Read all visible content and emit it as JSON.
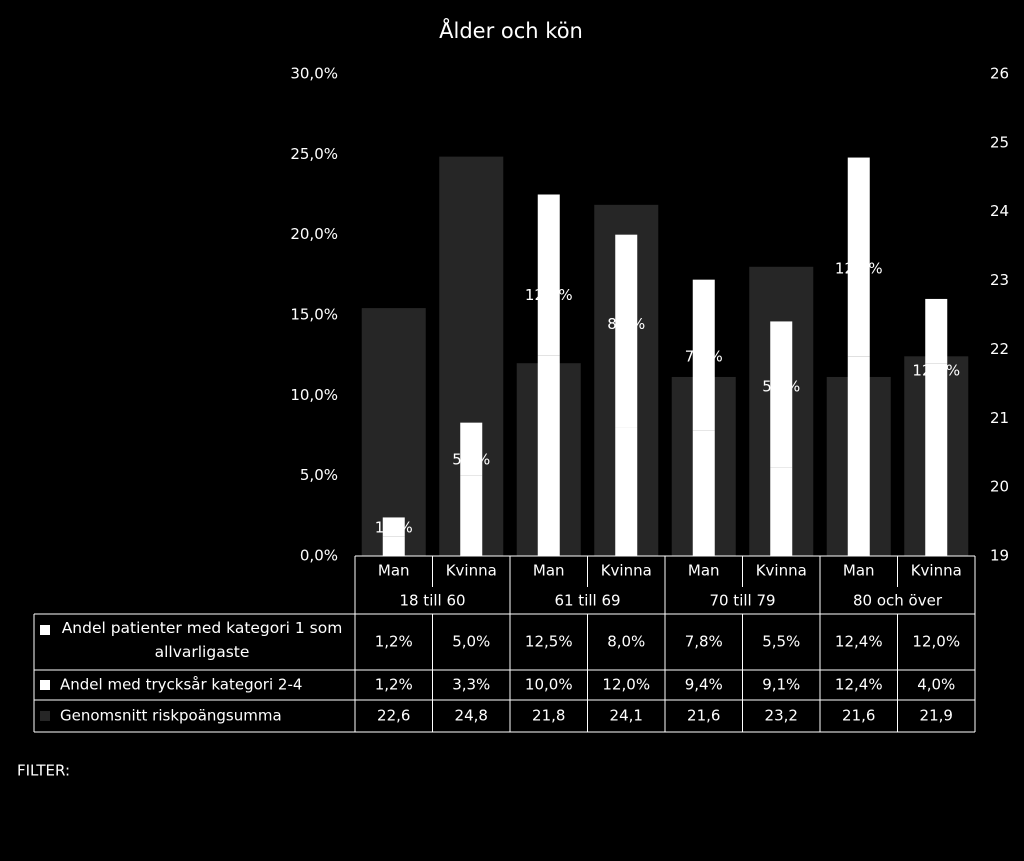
{
  "chart_data": {
    "type": "bar",
    "title": "Ålder och kön",
    "stacked": true,
    "categories": [
      "Man",
      "Kvinna",
      "Man",
      "Kvinna",
      "Man",
      "Kvinna",
      "Man",
      "Kvinna"
    ],
    "category_groups": [
      "18 till 60",
      "61 till 69",
      "70 till 79",
      "80 och över"
    ],
    "series": [
      {
        "name": "Andel patienter med kategori 1 som allvarligaste",
        "color": "#ffffff",
        "axis": "y",
        "values": [
          1.2,
          5.0,
          12.5,
          8.0,
          7.8,
          5.5,
          12.4,
          12.0
        ],
        "value_labels": [
          "1,2%",
          "5,0%",
          "12,5%",
          "8,0%",
          "7,8%",
          "5,5%",
          "12,4%",
          "12,0%"
        ]
      },
      {
        "name": "Andel med trycksår kategori 2-4",
        "color": "#ffffff",
        "axis": "y",
        "values": [
          1.2,
          3.3,
          10.0,
          12.0,
          9.4,
          9.1,
          12.4,
          4.0
        ],
        "value_labels": [
          "1,2%",
          "3,3%",
          "10,0%",
          "12,0%",
          "9,4%",
          "9,1%",
          "12,4%",
          "4,0%"
        ]
      },
      {
        "name": "Genomsnitt riskpoängsumma",
        "color": "#262626",
        "axis": "y2",
        "values": [
          22.6,
          24.8,
          21.8,
          24.1,
          21.6,
          23.2,
          21.6,
          21.9
        ],
        "value_labels": [
          "22,6",
          "24,8",
          "21,8",
          "24,1",
          "21,6",
          "23,2",
          "21,6",
          "21,9"
        ]
      }
    ],
    "ylim": [
      0,
      30
    ],
    "yticks": [
      {
        "value": 0,
        "label": "0,0%"
      },
      {
        "value": 5,
        "label": "5,0%"
      },
      {
        "value": 10,
        "label": "10,0%"
      },
      {
        "value": 15,
        "label": "15,0%"
      },
      {
        "value": 20,
        "label": "20,0%"
      },
      {
        "value": 25,
        "label": "25,0%"
      },
      {
        "value": 30,
        "label": "30,0%"
      }
    ],
    "y2lim": [
      19,
      26
    ],
    "y2ticks": [
      19,
      20,
      21,
      22,
      23,
      24,
      25,
      26
    ],
    "filter_label": "FILTER:"
  }
}
